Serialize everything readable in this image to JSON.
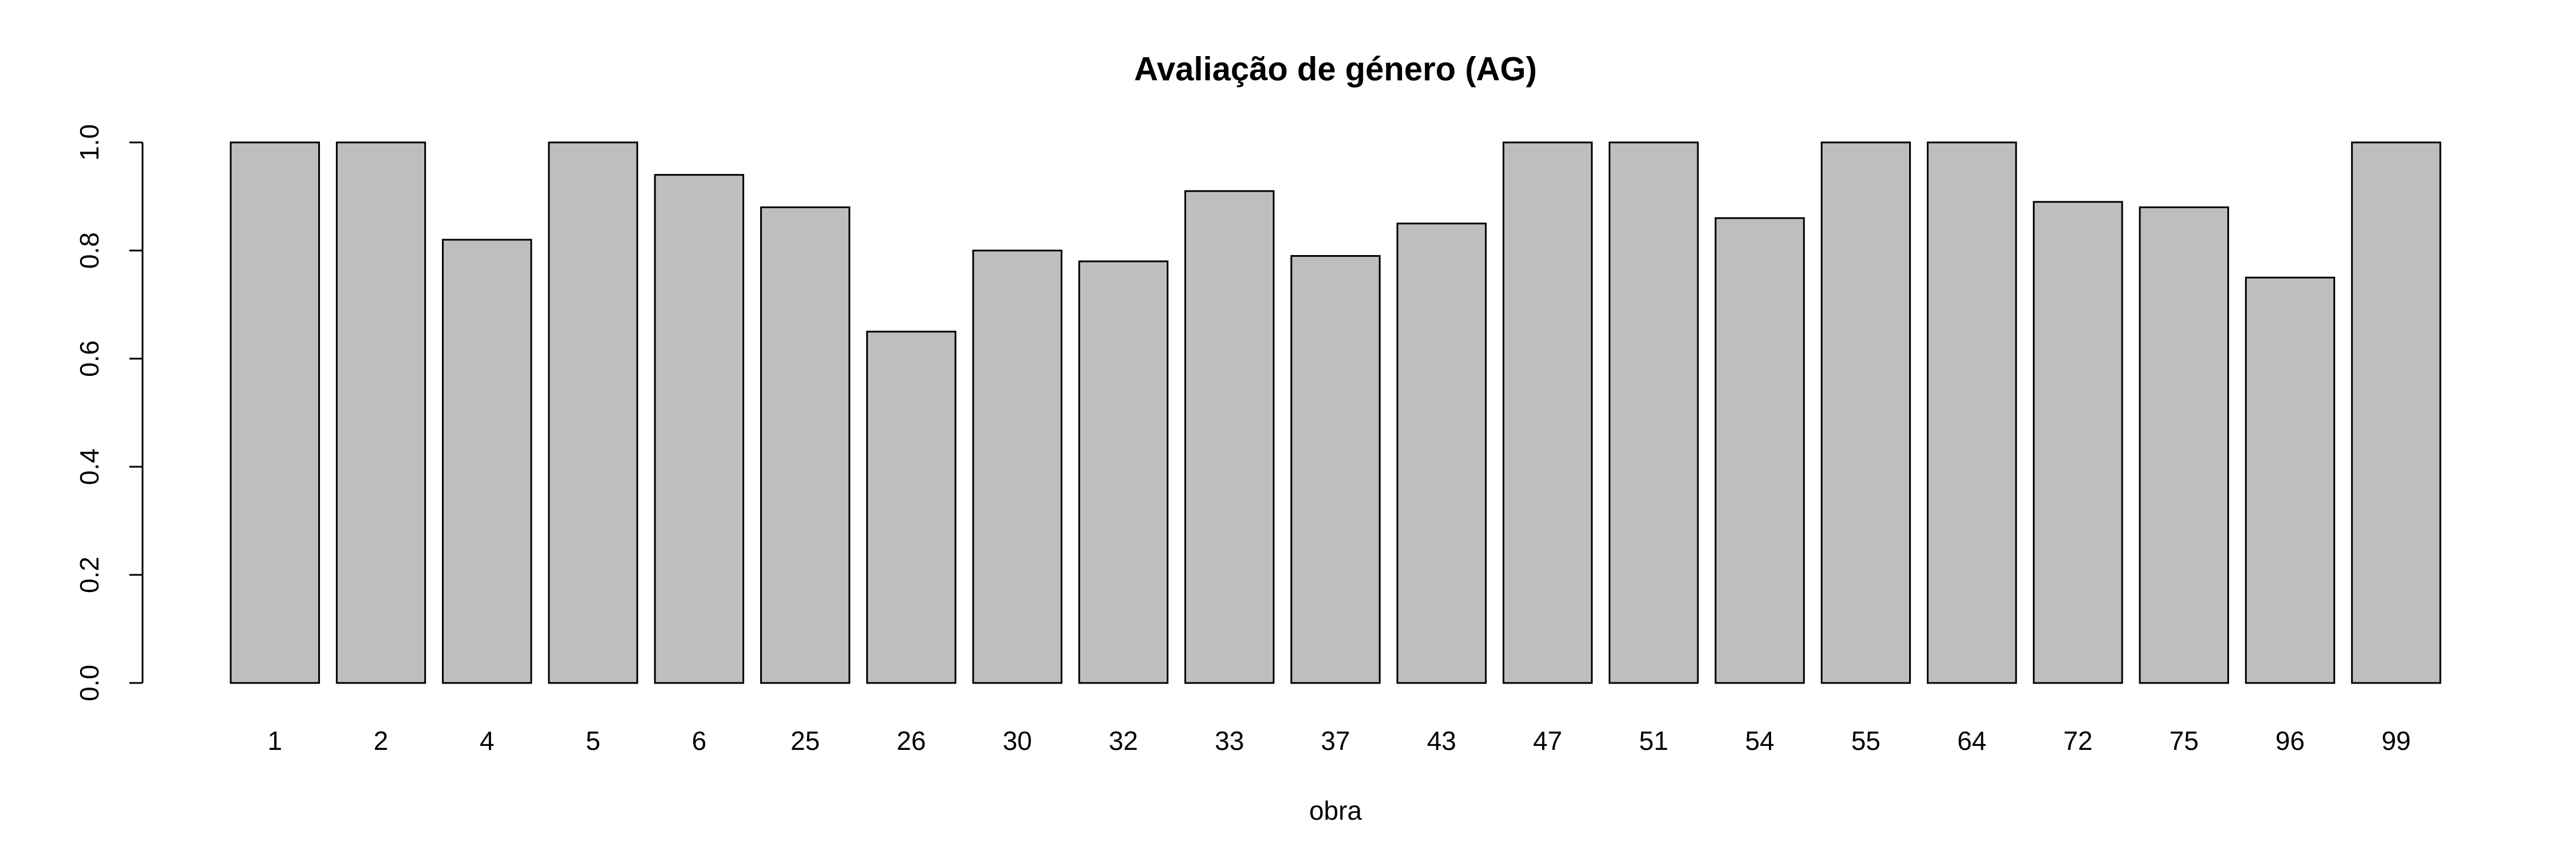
{
  "chart_data": {
    "type": "bar",
    "title": "Avaliação de género (AG)",
    "x_label": "obra",
    "categories": [
      "1",
      "2",
      "4",
      "5",
      "6",
      "25",
      "26",
      "30",
      "32",
      "33",
      "37",
      "43",
      "47",
      "51",
      "54",
      "55",
      "64",
      "72",
      "75",
      "96",
      "99"
    ],
    "values": [
      1.0,
      1.0,
      0.82,
      1.0,
      0.94,
      0.88,
      0.65,
      0.8,
      0.78,
      0.91,
      0.79,
      0.85,
      1.0,
      1.0,
      0.86,
      1.0,
      1.0,
      0.89,
      0.88,
      0.75,
      1.0
    ],
    "color": "#bebebe",
    "ylim": [
      0,
      1
    ],
    "yticks": [
      {
        "value": 0,
        "label": "0.0"
      },
      {
        "value": 0.2,
        "label": "0.2"
      },
      {
        "value": 0.4,
        "label": "0.4"
      },
      {
        "value": 0.6,
        "label": "0.6"
      },
      {
        "value": 0.8,
        "label": "0.8"
      },
      {
        "value": 1,
        "label": "1.0"
      }
    ]
  }
}
